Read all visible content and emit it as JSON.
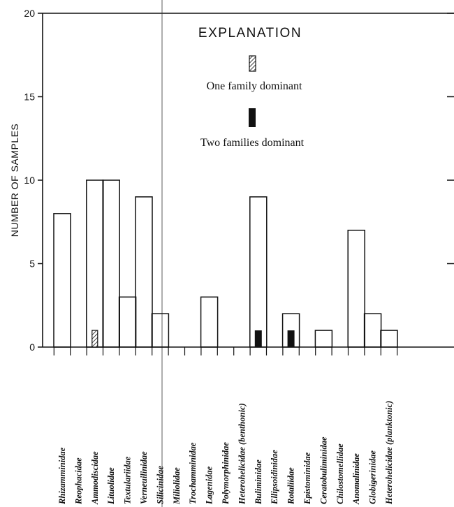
{
  "chart_data": {
    "type": "bar",
    "ylabel": "NUMBER OF SAMPLES",
    "ylim": [
      0,
      20
    ],
    "yticks": [
      0,
      5,
      10,
      15,
      20
    ],
    "grid": false,
    "legend": {
      "title": "EXPLANATION",
      "placement": "top-right",
      "entries": [
        {
          "label": "One family dominant",
          "pattern": "hatched"
        },
        {
          "label": "Two families dominant",
          "pattern": "solid"
        }
      ]
    },
    "categories": [
      "Rhizamminidae",
      "Reophacidae",
      "Ammodiscidae",
      "Lituolidae",
      "Textulariidae",
      "Verneuilinidae",
      "Silicinidae",
      "Miliolidae",
      "Trochamminidae",
      "Lagenidae",
      "Polymorphinidae",
      "Heterohelicidae (benthonic)",
      "Buliminidae",
      "Ellipsoidinidae",
      "Rotaliidae",
      "Epistominidae",
      "Ceratobuliminidae",
      "Chilostomellidae",
      "Anomalinidae",
      "Globigerinidae",
      "Heterohelicidae (planktonic)"
    ],
    "series": [
      {
        "name": "",
        "pattern": "open",
        "values": [
          8,
          0,
          10,
          10,
          3,
          9,
          2,
          0,
          0,
          3,
          0,
          0,
          9,
          0,
          2,
          0,
          1,
          0,
          7,
          2,
          1
        ]
      },
      {
        "name": "One family dominant",
        "pattern": "hatched",
        "values": [
          0,
          0,
          1,
          0,
          0,
          0,
          0,
          0,
          0,
          0,
          0,
          0,
          0,
          0,
          0,
          0,
          0,
          0,
          0,
          0,
          0
        ]
      },
      {
        "name": "Two families dominant",
        "pattern": "solid",
        "values": [
          0,
          0,
          0,
          0,
          0,
          0,
          0,
          0,
          0,
          0,
          0,
          0,
          1,
          0,
          1,
          0,
          0,
          0,
          0,
          0,
          0
        ]
      }
    ]
  }
}
